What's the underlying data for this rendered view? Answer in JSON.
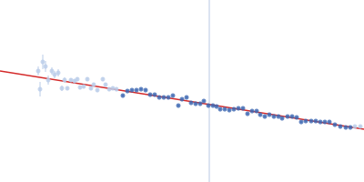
{
  "chart_data": {
    "type": "scatter",
    "xlim": [
      0,
      400
    ],
    "ylim": [
      0,
      200
    ],
    "tick_labels": false,
    "grid": false,
    "series": [
      {
        "type": "line",
        "color": "#c9d5ea",
        "x": [
          230,
          230
        ],
        "values": [
          0,
          200
        ]
      },
      {
        "type": "line",
        "color": "#d42a2a",
        "x": [
          0,
          400
        ],
        "values": [
          122,
          58
        ]
      },
      {
        "type": "scatter",
        "color": "#b9cce8",
        "marker": "circle",
        "x": [
          42,
          44,
          47,
          50,
          53,
          57,
          60,
          64,
          68,
          71,
          74,
          78,
          82,
          85,
          88,
          92,
          96,
          100,
          103,
          107,
          113,
          116,
          120,
          124,
          128
        ],
        "values": [
          122,
          102,
          132,
          127,
          112,
          122,
          118,
          120,
          103,
          112,
          103,
          112,
          111,
          113,
          104,
          105,
          113,
          103,
          107,
          101,
          113,
          107,
          102,
          103,
          102
        ],
        "errors": [
          5,
          8,
          8,
          6,
          5,
          4,
          4,
          4,
          3,
          3,
          2,
          2,
          2,
          2,
          2,
          2,
          2,
          2,
          2,
          2,
          2,
          2,
          2,
          2,
          2
        ]
      },
      {
        "type": "scatter",
        "color": "#3c66b1",
        "marker": "circle",
        "x": [
          135,
          140,
          145,
          150,
          155,
          160,
          165,
          170,
          175,
          180,
          185,
          190,
          196,
          200,
          205,
          210,
          215,
          220,
          224,
          229,
          234,
          238,
          242,
          247,
          252,
          257,
          262,
          267,
          272,
          277,
          282,
          286,
          291,
          296,
          301,
          306,
          310,
          316,
          321,
          326,
          331,
          336,
          342,
          347,
          352,
          357,
          362,
          368,
          374,
          380,
          385
        ],
        "values": [
          95,
          100,
          101,
          101,
          102,
          101,
          96,
          96,
          93,
          93,
          93,
          95,
          84,
          91,
          93,
          87,
          86,
          86,
          89,
          84,
          84,
          83,
          80,
          80,
          79,
          80,
          81,
          81,
          75,
          78,
          78,
          74,
          72,
          74,
          72,
          72,
          70,
          72,
          72,
          71,
          66,
          67,
          67,
          67,
          66,
          66,
          66,
          63,
          61,
          60,
          60
        ],
        "errors": [
          1,
          1,
          1,
          1,
          1,
          1,
          1,
          1,
          1,
          1,
          1,
          1,
          1,
          1,
          1,
          1,
          1,
          1,
          1,
          1,
          1,
          1,
          1,
          1,
          1,
          1,
          1,
          1,
          1,
          1,
          1,
          1,
          1,
          1,
          1,
          1,
          1,
          1,
          1,
          1,
          1,
          1,
          1,
          1,
          1,
          1,
          1,
          1,
          1,
          1,
          1
        ]
      },
      {
        "type": "scatter",
        "color": "#b9cce8",
        "marker": "circle",
        "x": [
          390,
          396
        ],
        "values": [
          61,
          61
        ],
        "errors": [
          1,
          1
        ]
      }
    ]
  }
}
